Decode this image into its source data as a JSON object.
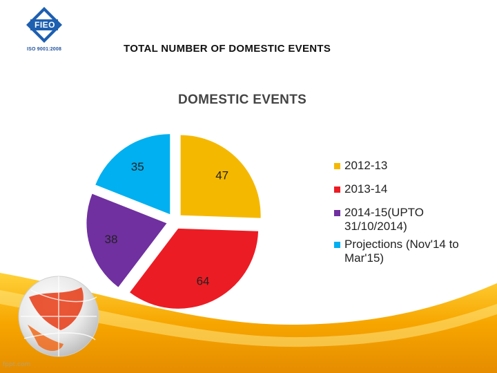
{
  "slide": {
    "title": "TOTAL NUMBER OF DOMESTIC EVENTS",
    "logo_text": "FIEO",
    "logo_caption": "ISO 9001:2008",
    "watermark": "fppt.com"
  },
  "chart_data": {
    "type": "pie",
    "title": "DOMESTIC EVENTS",
    "categories": [
      "2012-13",
      "2013-14",
      "2014-15(UPTO 31/10/2014)",
      "Projections (Nov'14 to Mar'15)"
    ],
    "values": [
      47,
      64,
      38,
      35
    ],
    "colors": [
      "#f5b800",
      "#ec1c24",
      "#7030a0",
      "#00b0f0"
    ],
    "exploded": true,
    "legend_position": "right",
    "data_labels": true
  },
  "legend_display": [
    "2012-13",
    "2013-14",
    "2014-15(UPTO\n31/10/2014)",
    "Projections (Nov'14 to\nMar'15)"
  ]
}
